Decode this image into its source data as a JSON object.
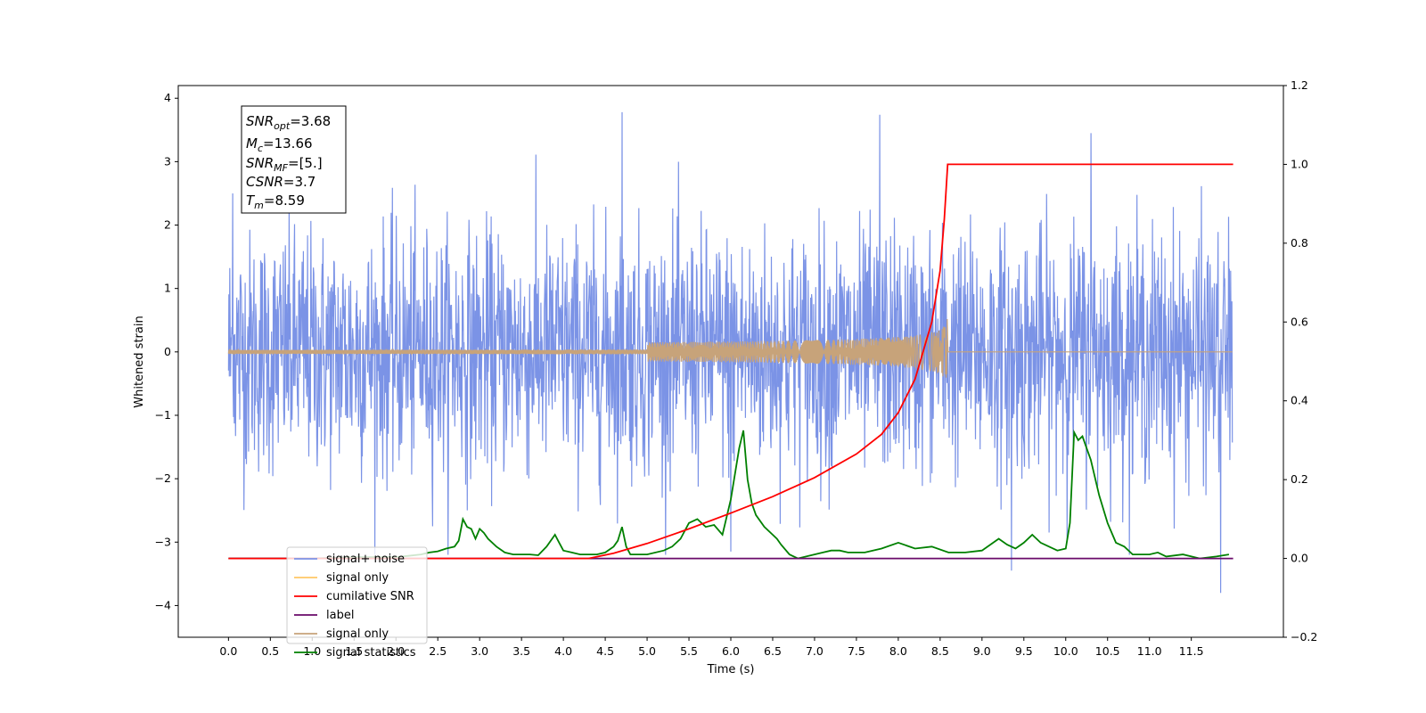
{
  "chart_data": {
    "type": "line",
    "xlabel": "Time (s)",
    "ylabel": "Whitened strain",
    "xlim": [
      -0.6,
      12.6
    ],
    "ylim_left": [
      -4.5,
      4.2
    ],
    "ylim_right": [
      -0.2,
      1.2
    ],
    "grid": false,
    "x_ticks": [
      "0.0",
      "0.5",
      "1.0",
      "1.5",
      "2.0",
      "2.5",
      "3.0",
      "3.5",
      "4.0",
      "4.5",
      "5.0",
      "5.5",
      "6.0",
      "6.5",
      "7.0",
      "7.5",
      "8.0",
      "8.5",
      "9.0",
      "9.5",
      "10.0",
      "10.5",
      "11.0",
      "11.5"
    ],
    "y_ticks_left": [
      "4",
      "3",
      "2",
      "1",
      "0",
      "−1",
      "−2",
      "−3",
      "−4"
    ],
    "y_ticks_right": [
      "1.2",
      "1.0",
      "0.8",
      "0.6",
      "0.4",
      "0.2",
      "0.0",
      "−0.2"
    ],
    "legend_position": "lower-left",
    "legend": [
      {
        "label": "signal+ noise",
        "color": "#7b93e6"
      },
      {
        "label": "signal only",
        "color": "#ffc766"
      },
      {
        "label": "cumilative SNR",
        "color": "#ff0000"
      },
      {
        "label": "label",
        "color": "#6a0a6a"
      },
      {
        "label": "signal only",
        "color": "#c7a37a"
      },
      {
        "label": "signal statistics",
        "color": "#008000"
      }
    ],
    "annotation_lines": [
      "SNR_opt=3.68",
      "M_c=13.66",
      "SNR_MF=[5.]",
      "CSNR=3.7",
      "T_m=8.59"
    ],
    "annotation": {
      "snr_opt": {
        "name": "SNR",
        "sub": "opt",
        "value": "=3.68"
      },
      "mc": {
        "name": "M",
        "sub": "c",
        "value": "=13.66"
      },
      "snr_mf": {
        "name": "SNR",
        "sub": "MF",
        "value": "=[5.]"
      },
      "csnr": {
        "name": "CSNR",
        "sub": "",
        "value": "=3.7"
      },
      "tm": {
        "name": "T",
        "sub": "m",
        "value": "=8.59"
      }
    },
    "series": [
      {
        "name": "signal+ noise",
        "axis": "left",
        "color": "#7b93e6",
        "description_range": [
          0,
          11.99
        ],
        "amplitude_std": 0.95,
        "notable_peaks": [
          [
            0.05,
            2.5
          ],
          [
            4.7,
            3.78
          ],
          [
            7.78,
            3.74
          ],
          [
            10.3,
            3.45
          ],
          [
            11.85,
            -3.8
          ],
          [
            9.35,
            -3.45
          ],
          [
            6.0,
            -3.15
          ]
        ]
      },
      {
        "name": "signal only",
        "axis": "left",
        "color": "#c7a37a",
        "chirp_end_time": 8.59,
        "peak_amplitude": 0.62
      },
      {
        "name": "cumilative SNR",
        "axis": "right",
        "color": "#ff0000",
        "x": [
          0.0,
          4.3,
          4.6,
          5.0,
          5.5,
          6.0,
          6.5,
          7.0,
          7.5,
          7.8,
          8.0,
          8.2,
          8.4,
          8.5,
          8.55,
          8.59,
          12.0
        ],
        "y": [
          0.0,
          0.0,
          0.013,
          0.038,
          0.075,
          0.115,
          0.157,
          0.205,
          0.265,
          0.315,
          0.37,
          0.455,
          0.6,
          0.73,
          0.86,
          1.0,
          1.0
        ]
      },
      {
        "name": "label",
        "axis": "right",
        "color": "#6a0a6a",
        "x": [
          0.0,
          12.0
        ],
        "y": [
          0.0,
          0.0
        ]
      },
      {
        "name": "signal statistics",
        "axis": "right",
        "color": "#008000",
        "x": [
          0.0,
          0.5,
          1.0,
          1.5,
          2.0,
          2.3,
          2.4,
          2.5,
          2.6,
          2.7,
          2.75,
          2.8,
          2.85,
          2.9,
          2.95,
          3.0,
          3.05,
          3.1,
          3.2,
          3.3,
          3.4,
          3.5,
          3.6,
          3.7,
          3.8,
          3.9,
          3.95,
          4.0,
          4.1,
          4.2,
          4.4,
          4.5,
          4.6,
          4.65,
          4.7,
          4.75,
          4.8,
          5.0,
          5.2,
          5.3,
          5.4,
          5.5,
          5.6,
          5.7,
          5.8,
          5.9,
          6.0,
          6.1,
          6.15,
          6.2,
          6.25,
          6.3,
          6.4,
          6.5,
          6.55,
          6.6,
          6.7,
          6.8,
          7.0,
          7.1,
          7.2,
          7.3,
          7.4,
          7.6,
          7.8,
          8.0,
          8.2,
          8.4,
          8.6,
          8.8,
          9.0,
          9.2,
          9.3,
          9.4,
          9.5,
          9.6,
          9.7,
          9.8,
          9.9,
          10.0,
          10.05,
          10.1,
          10.15,
          10.2,
          10.25,
          10.3,
          10.4,
          10.5,
          10.6,
          10.7,
          10.8,
          11.0,
          11.1,
          11.2,
          11.4,
          11.6,
          11.8,
          11.95
        ],
        "y": [
          0.0,
          0.0,
          0.0,
          0.003,
          0.003,
          0.01,
          0.015,
          0.018,
          0.025,
          0.03,
          0.045,
          0.1,
          0.08,
          0.075,
          0.05,
          0.075,
          0.065,
          0.05,
          0.03,
          0.015,
          0.01,
          0.01,
          0.01,
          0.008,
          0.03,
          0.06,
          0.04,
          0.02,
          0.015,
          0.01,
          0.01,
          0.015,
          0.03,
          0.045,
          0.08,
          0.03,
          0.01,
          0.01,
          0.02,
          0.03,
          0.05,
          0.09,
          0.1,
          0.08,
          0.085,
          0.06,
          0.15,
          0.28,
          0.325,
          0.2,
          0.14,
          0.11,
          0.08,
          0.06,
          0.05,
          0.035,
          0.01,
          0.0,
          0.01,
          0.015,
          0.02,
          0.02,
          0.015,
          0.015,
          0.025,
          0.04,
          0.025,
          0.03,
          0.015,
          0.015,
          0.02,
          0.05,
          0.035,
          0.025,
          0.04,
          0.06,
          0.04,
          0.03,
          0.02,
          0.025,
          0.09,
          0.32,
          0.3,
          0.31,
          0.28,
          0.25,
          0.16,
          0.09,
          0.04,
          0.03,
          0.01,
          0.01,
          0.015,
          0.005,
          0.01,
          0.0,
          0.005,
          0.01
        ]
      }
    ]
  }
}
